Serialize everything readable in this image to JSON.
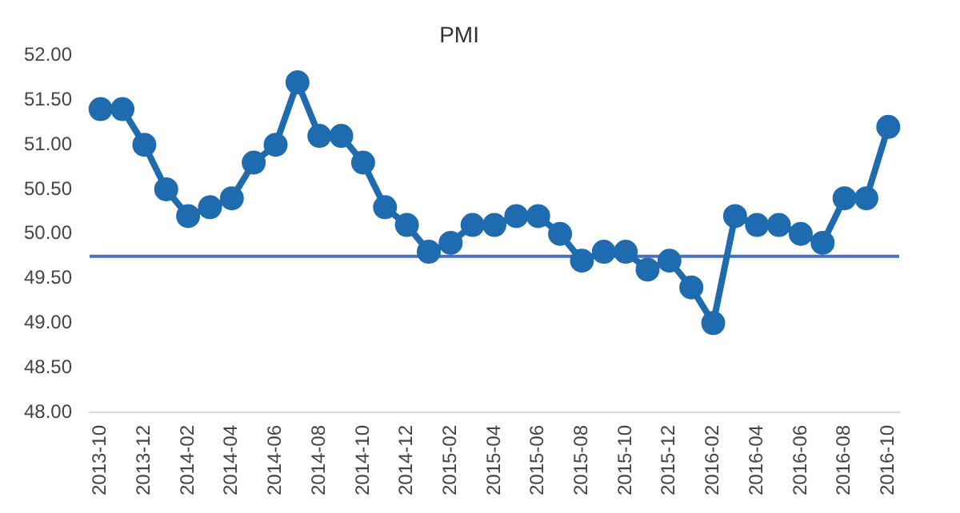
{
  "chart_data": {
    "type": "line",
    "title": "PMI",
    "categories": [
      "2013-10",
      null,
      "2013-12",
      null,
      "2014-02",
      null,
      "2014-04",
      null,
      "2014-06",
      null,
      "2014-08",
      null,
      "2014-10",
      null,
      "2014-12",
      null,
      "2015-02",
      null,
      "2015-04",
      null,
      "2015-06",
      null,
      "2015-08",
      null,
      "2015-10",
      null,
      "2015-12",
      null,
      "2016-02",
      null,
      "2016-04",
      null,
      "2016-06",
      null,
      "2016-08",
      null,
      "2016-10"
    ],
    "series": [
      {
        "color": "#1f6bb0",
        "values": [
          51.4,
          51.4,
          51.0,
          50.5,
          50.2,
          50.3,
          50.4,
          50.8,
          51.0,
          51.7,
          51.1,
          51.1,
          50.8,
          50.3,
          50.1,
          49.8,
          49.9,
          50.1,
          50.1,
          50.2,
          50.2,
          50.0,
          49.7,
          49.8,
          49.8,
          49.6,
          49.7,
          49.4,
          49.0,
          50.2,
          50.1,
          50.1,
          50.0,
          49.9,
          50.4,
          50.4,
          51.2
        ]
      }
    ],
    "ylim": [
      48,
      52
    ],
    "yticks": [
      {
        "value": 48,
        "label": "48.00"
      },
      {
        "value": 48.5,
        "label": "48.50"
      },
      {
        "value": 49,
        "label": "49.00"
      },
      {
        "value": 49.5,
        "label": "49.50"
      },
      {
        "value": 50,
        "label": "50.00"
      },
      {
        "value": 50.5,
        "label": "50.50"
      },
      {
        "value": 51,
        "label": "51.00"
      },
      {
        "value": 51.5,
        "label": "51.50"
      },
      {
        "value": 52,
        "label": "52.00"
      }
    ],
    "ref_lines": [
      {
        "axis": "y",
        "value": 49.75,
        "color": "#4a6fbf"
      }
    ],
    "grid": false,
    "legend": false,
    "marker": "circle",
    "line_style": "solid"
  }
}
